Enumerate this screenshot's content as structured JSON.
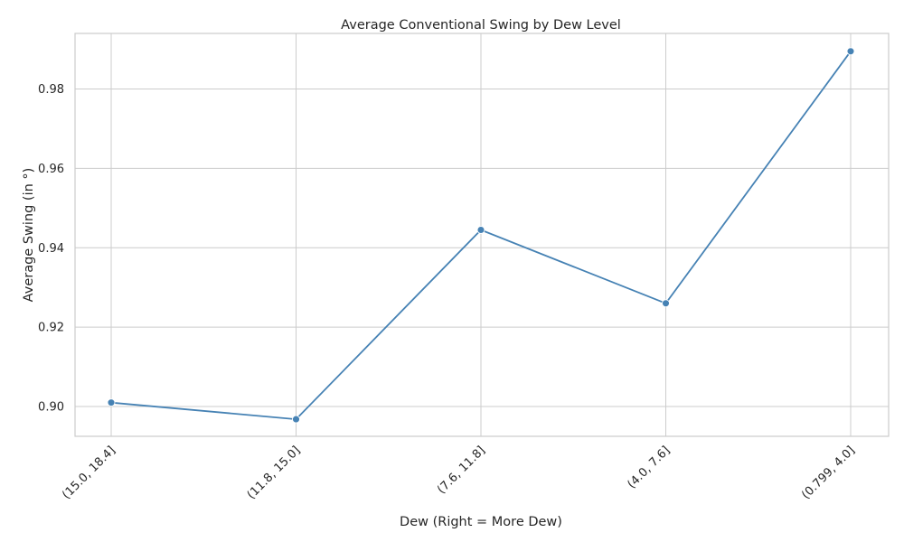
{
  "chart_data": {
    "type": "line",
    "title": "Average Conventional Swing by Dew Level",
    "xlabel": "Dew (Right = More Dew)",
    "ylabel": "Average Swing (in °)",
    "categories": [
      "(15.0, 18.4]",
      "(11.8, 15.0]",
      "(7.6, 11.8]",
      "(4.0, 7.6]",
      "(0.799, 4.0]"
    ],
    "series": [
      {
        "values": [
          0.901,
          0.8968,
          0.9445,
          0.926,
          0.9895
        ],
        "color": "#4682b4"
      }
    ],
    "ylim": [
      0.8925,
      0.994
    ],
    "yticks": [
      0.9,
      0.92,
      0.94,
      0.96,
      0.98
    ],
    "ytick_labels": [
      "0.90",
      "0.92",
      "0.94",
      "0.96",
      "0.98"
    ],
    "grid": true,
    "marker": "circle",
    "xtick_rotation": "45"
  }
}
